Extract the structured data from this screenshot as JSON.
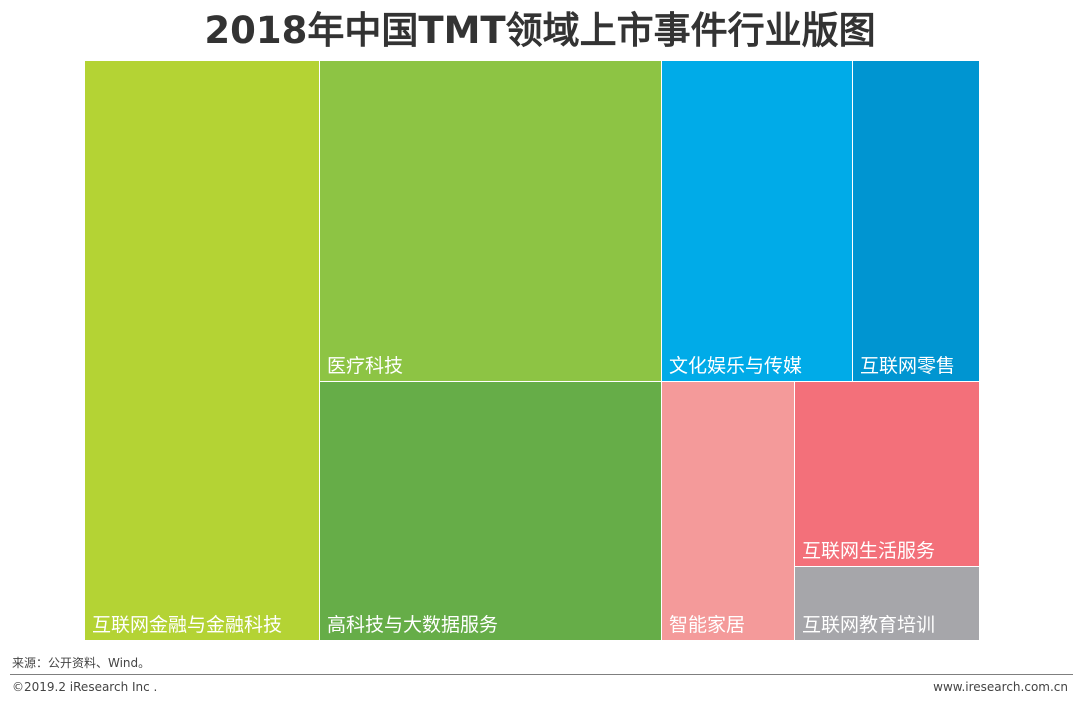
{
  "chart_data": {
    "type": "treemap",
    "title": "2018年中国TMT领域上市事件行业版图",
    "tiles": [
      {
        "label": "互联网金融与金融科技",
        "color": "#b4d334",
        "label_pos": "bottom"
      },
      {
        "label": "医疗科技",
        "color": "#8dc444",
        "label_pos": "bottom"
      },
      {
        "label": "高科技与大数据服务",
        "color": "#66ad48",
        "label_pos": "bottom"
      },
      {
        "label": "文化娱乐与传媒",
        "color": "#00abe8",
        "label_pos": "bottom"
      },
      {
        "label": "互联网零售",
        "color": "#0095d1",
        "label_pos": "bottom"
      },
      {
        "label": "智能家居",
        "color": "#f49a9a",
        "label_pos": "bottom"
      },
      {
        "label": "互联网生活服务",
        "color": "#f3707a",
        "label_pos": "bottom"
      },
      {
        "label": "互联网教育培训",
        "color": "#a6a6aa",
        "label_pos": "bottom"
      }
    ]
  },
  "footer": {
    "source": "来源：公开资料、Wind。",
    "copyright": "©2019.2 iResearch Inc .",
    "website": "www.iresearch.com.cn"
  }
}
